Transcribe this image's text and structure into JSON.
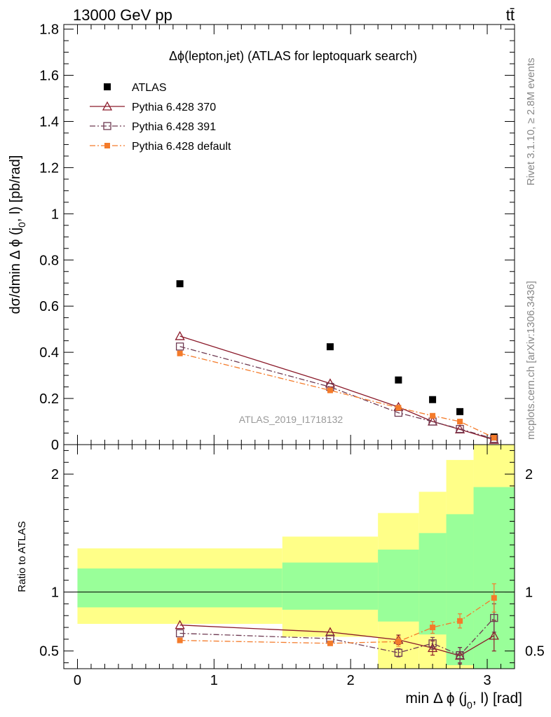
{
  "header": {
    "energy_label": "13000 GeV pp",
    "process_label": "tt̄"
  },
  "side_labels": {
    "rivet": "Rivet 3.1.10, ≥ 2.8M events",
    "mcplots": "mcplots.cern.ch [arXiv:1306.3436]"
  },
  "chart_data": [
    {
      "type": "scatter",
      "panel": "main",
      "title": "Δϕ(lepton,jet) (ATLAS for leptoquark search)",
      "watermark": "ATLAS_2019_I1718132",
      "ylabel": "dσ/dmin Δ ϕ (j0, l) [pb/rad]",
      "xlim": [
        -0.1,
        3.2
      ],
      "ylim": [
        0,
        1.82
      ],
      "yticks": [
        0.2,
        0.4,
        0.6,
        0.8,
        1,
        1.2,
        1.4,
        1.6,
        1.8
      ],
      "ytick_labels": [
        "0.2",
        "0.4",
        "0.6",
        "0.8",
        "1",
        "1.2",
        "1.4",
        "1.6",
        "1.8"
      ],
      "ylabel_zero": "0",
      "legend_position": "top-left",
      "series": [
        {
          "name": "ATLAS",
          "color": "#000000",
          "marker": "filled-square",
          "line": "none",
          "x": [
            0.75,
            1.85,
            2.35,
            2.6,
            2.8,
            3.05
          ],
          "y": [
            0.697,
            0.424,
            0.28,
            0.195,
            0.143,
            0.033
          ]
        },
        {
          "name": "Pythia 6.428 370",
          "color": "#8b1a2a",
          "marker": "open-triangle",
          "line": "solid",
          "x": [
            0.75,
            1.85,
            2.35,
            2.6,
            2.8,
            3.05
          ],
          "y": [
            0.47,
            0.265,
            0.163,
            0.1,
            0.066,
            0.021
          ]
        },
        {
          "name": "Pythia 6.428 391",
          "color": "#6e3a52",
          "marker": "open-square",
          "line": "dashdot",
          "x": [
            0.75,
            1.85,
            2.35,
            2.6,
            2.8,
            3.05
          ],
          "y": [
            0.425,
            0.25,
            0.138,
            0.1,
            0.068,
            0.025
          ]
        },
        {
          "name": "Pythia 6.428 default",
          "color": "#f47b2a",
          "marker": "small-filled-square",
          "line": "dashdot",
          "x": [
            0.75,
            1.85,
            2.35,
            2.6,
            2.8,
            3.05
          ],
          "y": [
            0.395,
            0.235,
            0.16,
            0.125,
            0.1,
            0.03
          ]
        }
      ]
    },
    {
      "type": "scatter",
      "panel": "ratio",
      "ylabel": "Ratio to ATLAS",
      "xlabel": "min Δ ϕ (j0, l) [rad]",
      "xlim": [
        -0.1,
        3.2
      ],
      "ylim": [
        0.35,
        2.25
      ],
      "xticks": [
        0,
        1,
        2,
        3
      ],
      "xtick_labels": [
        "0",
        "1",
        "2",
        "3"
      ],
      "yticks": [
        0.5,
        1,
        2
      ],
      "ytick_labels": [
        "0.5",
        "1",
        "2"
      ],
      "bands": {
        "edges": [
          0,
          1.5,
          2.2,
          2.5,
          2.7,
          2.9,
          3.2
        ],
        "yellow_lo": [
          0.73,
          0.62,
          0.35,
          0.35,
          0.35,
          0.35
        ],
        "yellow_hi": [
          1.37,
          1.47,
          1.67,
          1.85,
          2.12,
          2.3
        ],
        "green_lo": [
          0.87,
          0.85,
          0.75,
          0.64,
          0.38,
          0.35
        ],
        "green_hi": [
          1.2,
          1.25,
          1.36,
          1.5,
          1.66,
          1.89
        ],
        "yellow_color": "#ffff88",
        "green_color": "#99ff99"
      },
      "series": [
        {
          "name": "Pythia 6.428 370",
          "color": "#8b1a2a",
          "marker": "open-triangle",
          "line": "solid",
          "x": [
            0.75,
            1.85,
            2.35,
            2.6,
            2.8,
            3.05
          ],
          "y": [
            0.72,
            0.66,
            0.595,
            0.525,
            0.46,
            0.63
          ],
          "err": [
            0.01,
            0.01,
            0.04,
            0.06,
            0.07,
            0.13
          ]
        },
        {
          "name": "Pythia 6.428 391",
          "color": "#6e3a52",
          "marker": "open-square",
          "line": "dashdot",
          "x": [
            0.75,
            1.85,
            2.35,
            2.6,
            2.8,
            3.05
          ],
          "y": [
            0.65,
            0.605,
            0.485,
            0.565,
            0.465,
            0.78
          ],
          "err": [
            0.01,
            0.01,
            0.035,
            0.05,
            0.065,
            0.12
          ]
        },
        {
          "name": "Pythia 6.428 default",
          "color": "#f47b2a",
          "marker": "small-filled-square",
          "line": "dashdot",
          "x": [
            0.75,
            1.85,
            2.35,
            2.6,
            2.8,
            3.05
          ],
          "y": [
            0.59,
            0.565,
            0.58,
            0.7,
            0.755,
            0.95
          ],
          "err": [
            0.01,
            0.01,
            0.04,
            0.05,
            0.06,
            0.12
          ]
        }
      ]
    }
  ]
}
